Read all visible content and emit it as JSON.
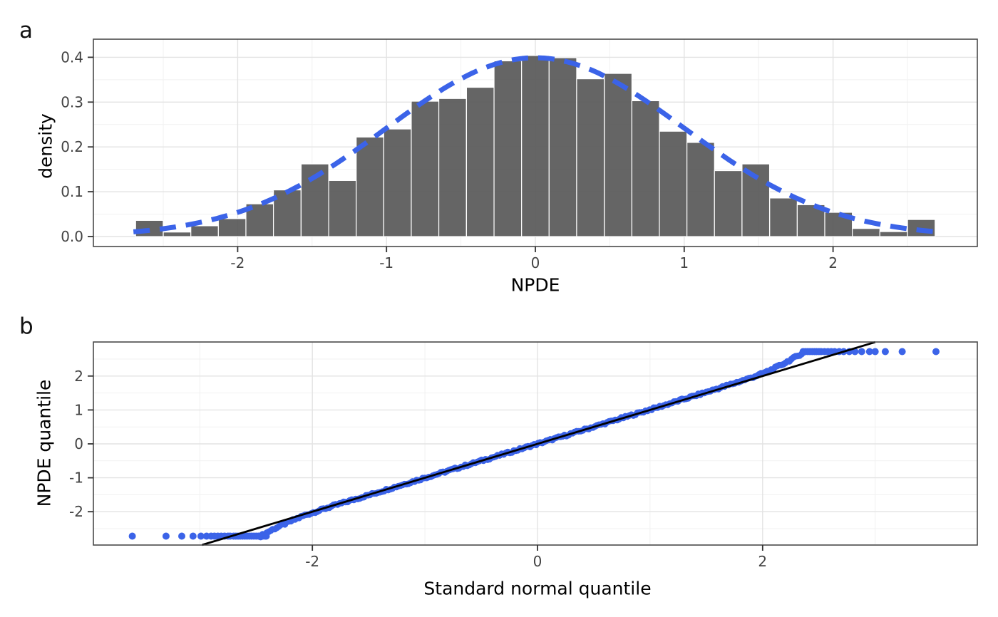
{
  "figure": {
    "background": "#FFFFFF",
    "panel_tags": [
      "a",
      "b"
    ]
  },
  "colors": {
    "accent_blue": "#3B63E8",
    "bar_fill": "#595959",
    "ref_line": "#000000",
    "grid_major": "#E3E3E3",
    "grid_minor": "#F1F1F1",
    "panel_border": "#4A4A4A",
    "tick_mark": "#333333",
    "tick_label": "#444444"
  },
  "chart_data": [
    {
      "type": "bar",
      "subtype": "histogram-with-normal-density-overlay",
      "panel_tag": "a",
      "xlabel": "NPDE",
      "ylabel": "density",
      "xlim": [
        -2.97,
        2.97
      ],
      "ylim": [
        -0.022,
        0.44
      ],
      "x_tick_values": [
        -2,
        -1,
        0,
        1,
        2
      ],
      "x_tick_labels": [
        "-2",
        "-1",
        "0",
        "1",
        "2"
      ],
      "y_tick_values": [
        0.0,
        0.1,
        0.2,
        0.3,
        0.4
      ],
      "y_tick_labels": [
        "0.0",
        "0.1",
        "0.2",
        "0.3",
        "0.4"
      ],
      "grid": {
        "major_x": [
          -2,
          -1,
          0,
          1,
          2
        ],
        "minor_x": [
          -2.5,
          -1.5,
          -0.5,
          0.5,
          1.5,
          2.5
        ],
        "major_y": [
          0.0,
          0.1,
          0.2,
          0.3,
          0.4
        ],
        "minor_y": [
          0.05,
          0.15,
          0.25,
          0.35
        ]
      },
      "bin_width": 0.1852,
      "bin_centers": [
        -2.593,
        -2.407,
        -2.222,
        -2.037,
        -1.852,
        -1.667,
        -1.481,
        -1.296,
        -1.111,
        -0.926,
        -0.741,
        -0.556,
        -0.37,
        -0.185,
        0.0,
        0.185,
        0.37,
        0.556,
        0.741,
        0.926,
        1.111,
        1.296,
        1.481,
        1.667,
        1.852,
        2.037,
        2.222,
        2.407,
        2.593
      ],
      "densities": [
        0.036,
        0.01,
        0.024,
        0.04,
        0.073,
        0.104,
        0.162,
        0.125,
        0.222,
        0.24,
        0.302,
        0.308,
        0.333,
        0.392,
        0.404,
        0.399,
        0.352,
        0.364,
        0.303,
        0.235,
        0.21,
        0.147,
        0.162,
        0.086,
        0.071,
        0.054,
        0.018,
        0.011,
        0.038
      ],
      "overlay_curve": {
        "kind": "normal-density",
        "mean": 0,
        "sd": 1,
        "x_range": [
          -2.7,
          2.7
        ],
        "style": "dashed",
        "stroke_width": 7,
        "dash": [
          23,
          14
        ]
      }
    },
    {
      "type": "scatter",
      "subtype": "qq-plot",
      "panel_tag": "b",
      "xlabel": "Standard normal quantile",
      "ylabel": "NPDE quantile",
      "xlim": [
        -3.95,
        3.91
      ],
      "ylim": [
        -2.99,
        3.01
      ],
      "x_tick_values": [
        -2,
        0,
        2
      ],
      "x_tick_labels": [
        "-2",
        "0",
        "2"
      ],
      "y_tick_values": [
        -2,
        -1,
        0,
        1,
        2
      ],
      "y_tick_labels": [
        "-2",
        "-1",
        "0",
        "1",
        "2"
      ],
      "grid": {
        "major_x": [
          -2,
          0,
          2
        ],
        "minor_x": [
          -3,
          -1,
          1,
          3
        ],
        "major_y": [
          -2,
          -1,
          0,
          1,
          2
        ],
        "minor_y": [
          -2.5,
          -1.5,
          -0.5,
          0.5,
          1.5,
          2.5
        ]
      },
      "reference_line": {
        "slope": 1,
        "intercept": 0,
        "x_range": [
          -2.98,
          3.0
        ]
      },
      "marker_radius": 4.6,
      "tail_marker_radius": 5.0,
      "band_step": 0.018,
      "band_jitter": 0.055,
      "qq_curve_anchors": [
        [
          -2.46,
          -2.72
        ],
        [
          -2.42,
          -2.65
        ],
        [
          -2.38,
          -2.57
        ],
        [
          -2.33,
          -2.49
        ],
        [
          -2.28,
          -2.41
        ],
        [
          -2.22,
          -2.32
        ],
        [
          -2.15,
          -2.22
        ],
        [
          -2.08,
          -2.12
        ],
        [
          -2.0,
          -2.03
        ],
        [
          -1.9,
          -1.92
        ],
        [
          -1.8,
          -1.81
        ],
        [
          -1.6,
          -1.61
        ],
        [
          -1.4,
          -1.41
        ],
        [
          -1.2,
          -1.205
        ],
        [
          -1.0,
          -1.0
        ],
        [
          -0.75,
          -0.75
        ],
        [
          -0.5,
          -0.5
        ],
        [
          -0.25,
          -0.25
        ],
        [
          0.0,
          0.0
        ],
        [
          0.25,
          0.25
        ],
        [
          0.5,
          0.505
        ],
        [
          0.75,
          0.76
        ],
        [
          1.0,
          1.01
        ],
        [
          1.2,
          1.215
        ],
        [
          1.4,
          1.42
        ],
        [
          1.6,
          1.63
        ],
        [
          1.75,
          1.79
        ],
        [
          1.88,
          1.93
        ],
        [
          1.98,
          2.05
        ],
        [
          2.06,
          2.16
        ],
        [
          2.13,
          2.27
        ],
        [
          2.2,
          2.39
        ],
        [
          2.27,
          2.52
        ],
        [
          2.33,
          2.63
        ],
        [
          2.38,
          2.72
        ]
      ],
      "lower_tail_y": -2.72,
      "lower_tail_x": [
        -3.6,
        -3.3,
        -3.16,
        -3.06,
        -2.99,
        -2.94,
        -2.9,
        -2.87,
        -2.84,
        -2.81,
        -2.78,
        -2.75,
        -2.73,
        -2.7,
        -2.68,
        -2.66,
        -2.64,
        -2.62,
        -2.6,
        -2.58,
        -2.56,
        -2.54,
        -2.52,
        -2.5,
        -2.48,
        -2.47,
        -2.45,
        -2.44,
        -2.42,
        -2.41
      ],
      "upper_tail_y": 2.72,
      "upper_tail_x": [
        2.36,
        2.38,
        2.4,
        2.42,
        2.44,
        2.46,
        2.48,
        2.5,
        2.52,
        2.55,
        2.58,
        2.61,
        2.64,
        2.68,
        2.72,
        2.77,
        2.82,
        2.88,
        2.95,
        3.0,
        3.09,
        3.24,
        3.54
      ]
    }
  ]
}
